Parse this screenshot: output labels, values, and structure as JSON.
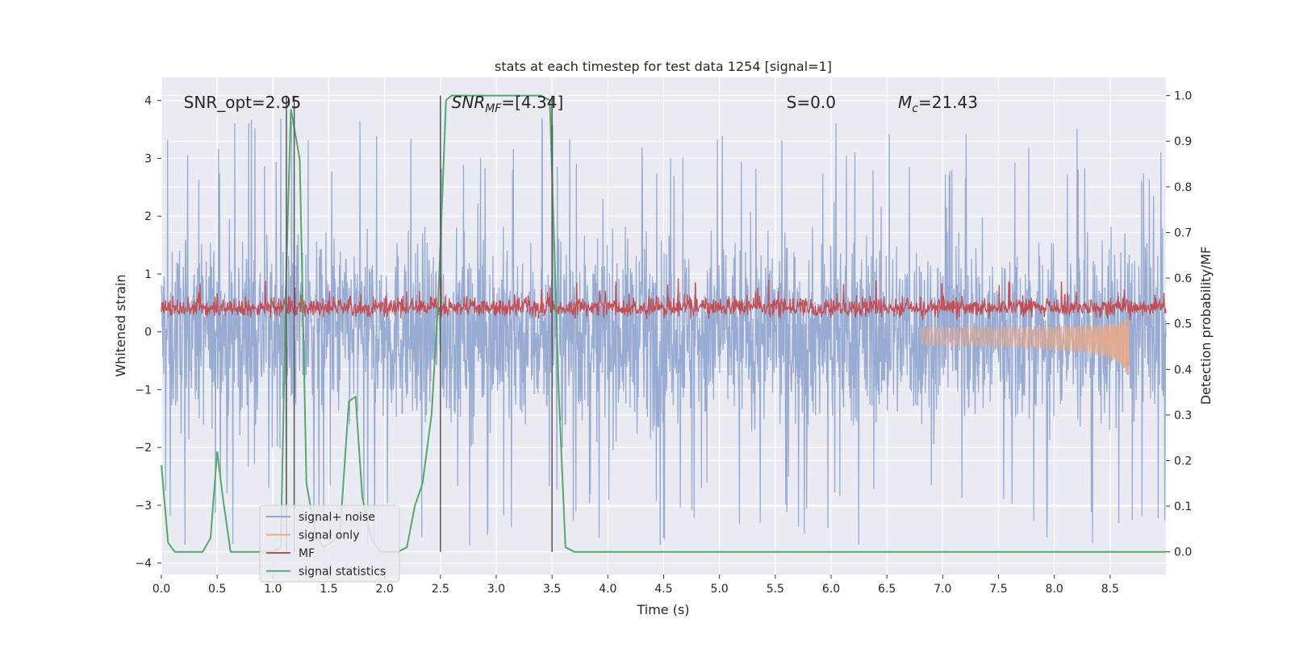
{
  "chart_data": {
    "type": "line",
    "title": "stats at each timestep for test data 1254 [signal=1]",
    "xlabel": "Time (s)",
    "ylabel_left": "Whitened strain",
    "ylabel_right": "Detection probability/MF",
    "xlim": [
      0.0,
      9.0
    ],
    "ylim_left": [
      -4.2,
      4.4
    ],
    "ylim_right": [
      -0.05,
      1.04
    ],
    "x_ticks": [
      0.0,
      0.5,
      1.0,
      1.5,
      2.0,
      2.5,
      3.0,
      3.5,
      4.0,
      4.5,
      5.0,
      5.5,
      6.0,
      6.5,
      7.0,
      7.5,
      8.0,
      8.5
    ],
    "x_tick_labels": [
      "0.0",
      "0.5",
      "1.0",
      "1.5",
      "2.0",
      "2.5",
      "3.0",
      "3.5",
      "4.0",
      "4.5",
      "5.0",
      "5.5",
      "6.0",
      "6.5",
      "7.0",
      "7.5",
      "8.0",
      "8.5"
    ],
    "y_left_ticks": [
      -4,
      -3,
      -2,
      -1,
      0,
      1,
      2,
      3,
      4
    ],
    "y_left_tick_labels": [
      "−4",
      "−3",
      "−2",
      "−1",
      "0",
      "1",
      "2",
      "3",
      "4"
    ],
    "y_right_ticks": [
      0.0,
      0.1,
      0.2,
      0.3,
      0.4,
      0.5,
      0.6,
      0.7,
      0.8,
      0.9,
      1.0
    ],
    "y_right_tick_labels": [
      "0.0",
      "0.1",
      "0.2",
      "0.3",
      "0.4",
      "0.5",
      "0.6",
      "0.7",
      "0.8",
      "0.9",
      "1.0"
    ],
    "grid": true,
    "annotations": [
      {
        "text": "SNR_opt=2.95",
        "x": 0.2,
        "y": 4.15
      },
      {
        "text": "SNR_MF=[4.34]",
        "x": 2.6,
        "y": 4.15
      },
      {
        "text": "S=0.0",
        "x": 5.6,
        "y": 4.15
      },
      {
        "text": "M_c=21.43",
        "x": 6.6,
        "y": 4.15
      }
    ],
    "vertical_lines": [
      1.12,
      1.19,
      2.5,
      3.5
    ],
    "legend": {
      "position": "lower-left",
      "entries": [
        {
          "label": "signal+ noise",
          "color": "#92a8d1"
        },
        {
          "label": "signal only",
          "color": "#e8a98a"
        },
        {
          "label": "MF",
          "color": "#c44e52"
        },
        {
          "label": "signal statistics",
          "color": "#55a868"
        }
      ]
    },
    "series": [
      {
        "name": "signal+ noise",
        "axis": "left",
        "color": "#92a8d1",
        "style": "noise-band",
        "amplitude_approx": 3.0,
        "x_range": [
          0.0,
          9.0
        ]
      },
      {
        "name": "signal only",
        "axis": "left",
        "color": "#e8a98a",
        "style": "chirp",
        "x_range": [
          6.8,
          8.67
        ],
        "peak_abs": 0.9
      },
      {
        "name": "MF",
        "axis": "right",
        "color": "#c44e52",
        "style": "noise-band",
        "baseline": 0.5,
        "spread": 0.08,
        "x_range": [
          0.0,
          9.0
        ],
        "max": 0.61
      },
      {
        "name": "signal statistics",
        "axis": "right",
        "color": "#55a868",
        "x": [
          0.0,
          0.06,
          0.12,
          0.2,
          0.3,
          0.37,
          0.44,
          0.5,
          0.55,
          0.62,
          0.7,
          0.8,
          0.9,
          1.0,
          1.07,
          1.12,
          1.16,
          1.19,
          1.24,
          1.3,
          1.38,
          1.45,
          1.52,
          1.6,
          1.68,
          1.74,
          1.8,
          1.88,
          1.96,
          2.05,
          2.12,
          2.2,
          2.27,
          2.34,
          2.42,
          2.48,
          2.55,
          2.6,
          2.8,
          3.0,
          3.2,
          3.4,
          3.48,
          3.56,
          3.62,
          3.7,
          4.0,
          5.0,
          6.0,
          7.0,
          8.0,
          9.0
        ],
        "y": [
          0.19,
          0.02,
          0.0,
          0.0,
          0.0,
          0.0,
          0.03,
          0.22,
          0.12,
          0.0,
          0.0,
          0.0,
          0.0,
          0.0,
          0.01,
          0.62,
          0.97,
          0.93,
          0.86,
          0.15,
          0.04,
          0.01,
          0.02,
          0.04,
          0.33,
          0.34,
          0.12,
          0.03,
          0.0,
          0.0,
          0.0,
          0.01,
          0.1,
          0.15,
          0.3,
          0.55,
          0.99,
          1.0,
          1.0,
          1.0,
          1.0,
          1.0,
          0.99,
          0.35,
          0.01,
          0.0,
          0.0,
          0.0,
          0.0,
          0.0,
          0.0,
          0.0
        ]
      }
    ]
  }
}
